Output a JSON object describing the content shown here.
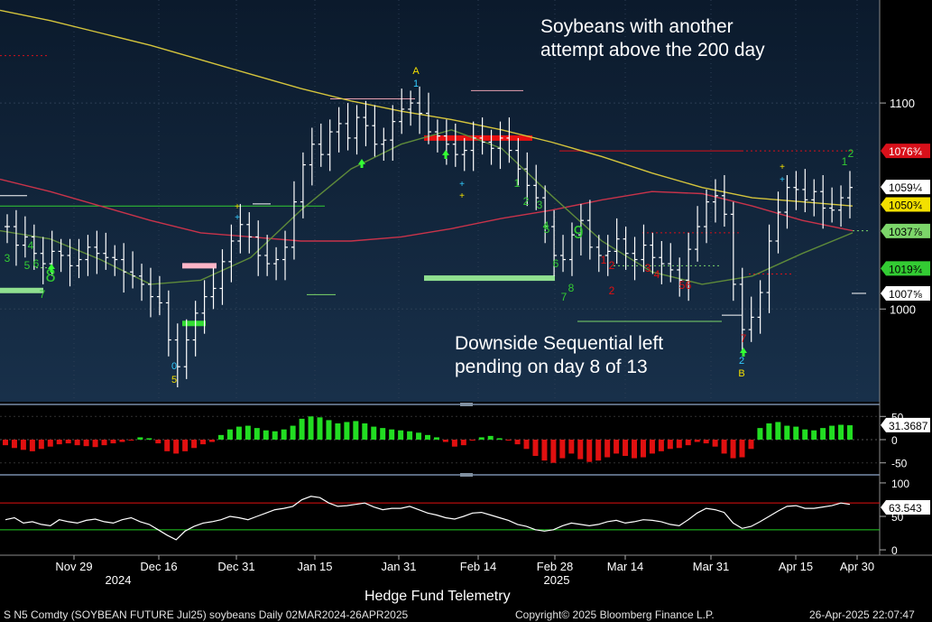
{
  "chart_data": {
    "type": "line",
    "annotations": {
      "top": "Soybeans with another attempt above the 200 day",
      "bottom": "Downside Sequential left pending on day 8 of 13"
    },
    "x_axis": {
      "labels": [
        "Nov 29",
        "Dec 16",
        "Dec 31",
        "Jan 15",
        "Jan 31",
        "Feb 14",
        "Feb 28",
        "Mar 14",
        "Mar 31",
        "Apr 15",
        "Apr 30"
      ],
      "years": [
        "2024",
        "2025"
      ]
    },
    "price_panel": {
      "y_ticks": [
        1000,
        1100
      ],
      "ylim": [
        955,
        1150
      ],
      "price_tags": [
        {
          "label": "1076¾",
          "value": 1076.75,
          "bg": "#d8101a",
          "fg": "#ffffff"
        },
        {
          "label": "1059¼",
          "value": 1059.25,
          "bg": "#ffffff",
          "fg": "#000000"
        },
        {
          "label": "1050¾",
          "value": 1050.75,
          "bg": "#f3e000",
          "fg": "#000000"
        },
        {
          "label": "1037⅞",
          "value": 1037.9,
          "bg": "#7cd66a",
          "fg": "#000000"
        },
        {
          "label": "1019¾",
          "value": 1019.7,
          "bg": "#33cc33",
          "fg": "#000000"
        },
        {
          "label": "1007⅝",
          "value": 1007.6,
          "bg": "#ffffff",
          "fg": "#000000"
        }
      ],
      "series": [
        {
          "name": "200-day MA",
          "color": "#d4c43c",
          "values": [
            1145,
            1140,
            1134,
            1128,
            1121,
            1114,
            1107,
            1101,
            1096,
            1092,
            1087,
            1081,
            1074,
            1066,
            1059,
            1054,
            1052,
            1050
          ]
        },
        {
          "name": "100-day MA",
          "color": "#c8334a",
          "values": [
            1063,
            1057,
            1050,
            1043,
            1037,
            1035,
            1033,
            1033,
            1035,
            1039,
            1044,
            1048,
            1053,
            1057,
            1056,
            1050,
            1043,
            1038
          ]
        },
        {
          "name": "50-day MA",
          "color": "#5e8a3a",
          "values": [
            1038,
            1034,
            1024,
            1012,
            1014,
            1025,
            1048,
            1068,
            1080,
            1087,
            1078,
            1055,
            1033,
            1018,
            1012,
            1016,
            1027,
            1037
          ]
        }
      ],
      "bars_close": [
        1040,
        1031,
        1035,
        1027,
        1022,
        1028,
        1026,
        1021,
        1024,
        1030,
        1027,
        1025,
        1024,
        1018,
        1016,
        1012,
        1006,
        1003,
        985,
        972,
        985,
        998,
        1006,
        1010,
        1023,
        1033,
        1041,
        1035,
        1026,
        1022,
        1024,
        1030,
        1052,
        1070,
        1080,
        1075,
        1086,
        1090,
        1083,
        1093,
        1089,
        1080,
        1082,
        1091,
        1097,
        1100,
        1095,
        1086,
        1084,
        1080,
        1075,
        1077,
        1083,
        1081,
        1078,
        1083,
        1077,
        1068,
        1060,
        1054,
        1040,
        1026,
        1024,
        1036,
        1043,
        1030,
        1026,
        1028,
        1034,
        1027,
        1024,
        1031,
        1025,
        1022,
        1019,
        1014,
        1029,
        1040,
        1052,
        1055,
        1046,
        1012,
        990,
        996,
        1008,
        1033,
        1047,
        1059,
        1058,
        1053,
        1057,
        1049,
        1048,
        1054,
        1059
      ],
      "sequential_setup_counts": [
        "34",
        "5",
        "6",
        "7",
        "8",
        "9",
        "0",
        "5",
        "A",
        "1",
        "1",
        "2",
        "3",
        "4",
        "5",
        "6",
        "7",
        "8",
        "9",
        "1",
        "2",
        "3",
        "4",
        "5",
        "6",
        "7",
        "8",
        "2",
        "B",
        "1",
        "2"
      ]
    },
    "momentum_panel": {
      "y_ticks": [
        50,
        0,
        -50
      ],
      "last_value": "31.3687",
      "ylim": [
        -70,
        70
      ],
      "values": [
        -12,
        -18,
        -22,
        -25,
        -20,
        -15,
        -10,
        -8,
        -12,
        -14,
        -16,
        -12,
        -8,
        -5,
        -2,
        5,
        3,
        -8,
        -25,
        -30,
        -25,
        -18,
        -10,
        -5,
        10,
        22,
        28,
        30,
        25,
        20,
        18,
        22,
        30,
        45,
        50,
        48,
        42,
        35,
        38,
        40,
        35,
        28,
        25,
        22,
        20,
        18,
        15,
        10,
        5,
        -5,
        -15,
        -12,
        -2,
        5,
        8,
        3,
        -2,
        -10,
        -20,
        -35,
        -45,
        -50,
        -40,
        -30,
        -42,
        -48,
        -45,
        -38,
        -30,
        -35,
        -40,
        -38,
        -30,
        -25,
        -20,
        -18,
        -12,
        -5,
        -8,
        -15,
        -30,
        -40,
        -38,
        -20,
        25,
        35,
        38,
        30,
        28,
        22,
        20,
        25,
        30,
        32,
        31
      ]
    },
    "rsi_panel": {
      "y_ticks": [
        100,
        50,
        0
      ],
      "last_value": "63.543",
      "ylim": [
        -8,
        108
      ],
      "upper_band": 70,
      "lower_band": 30,
      "values": [
        45,
        48,
        40,
        42,
        38,
        36,
        45,
        42,
        40,
        44,
        46,
        42,
        40,
        45,
        48,
        42,
        38,
        30,
        22,
        15,
        28,
        35,
        40,
        42,
        45,
        50,
        48,
        45,
        50,
        55,
        60,
        62,
        65,
        75,
        80,
        78,
        70,
        65,
        66,
        68,
        70,
        64,
        60,
        62,
        62,
        65,
        60,
        55,
        52,
        48,
        46,
        50,
        55,
        56,
        52,
        48,
        44,
        38,
        35,
        30,
        28,
        30,
        36,
        40,
        38,
        36,
        38,
        42,
        44,
        40,
        42,
        45,
        44,
        42,
        38,
        36,
        45,
        55,
        62,
        60,
        56,
        40,
        32,
        35,
        42,
        50,
        58,
        65,
        66,
        62,
        62,
        64,
        66,
        70,
        68
      ]
    }
  },
  "footer": {
    "left": "S N5 Comdty (SOYBEAN FUTURE    Jul25) soybeans  Daily 02MAR2024-26APR2025",
    "center": "Copyright© 2025 Bloomberg Finance L.P.",
    "right": "26-Apr-2025 22:07:47",
    "watermark": "Hedge Fund Telemetry"
  }
}
